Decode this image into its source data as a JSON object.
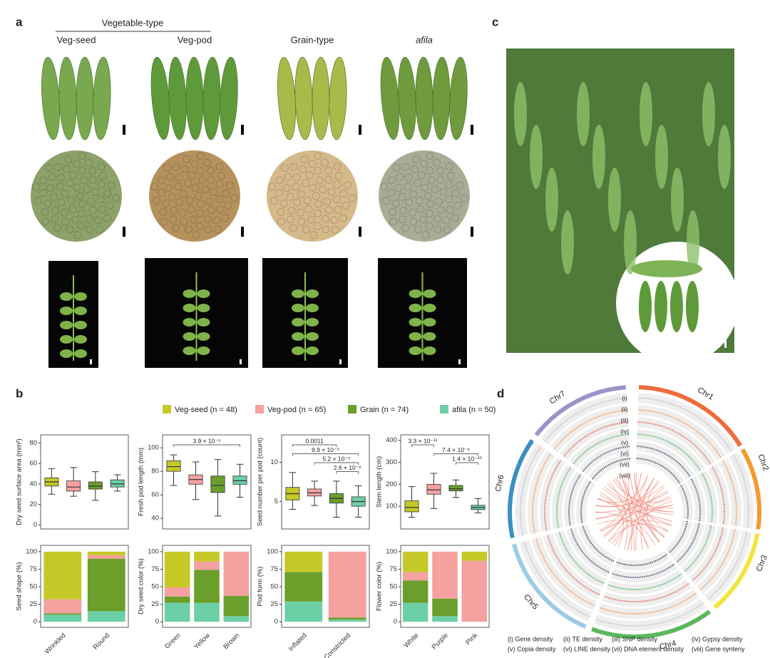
{
  "panel_labels": [
    "a",
    "b",
    "c",
    "d"
  ],
  "panel_a": {
    "group_label": "Vegetable-type",
    "columns": [
      "Veg-seed",
      "Veg-pod",
      "Grain-type",
      "afila"
    ]
  },
  "legend": [
    {
      "name": "Veg-seed (n = 48)",
      "color": "#c5c927"
    },
    {
      "name": "Veg-pod (n = 65)",
      "color": "#f4a1a0"
    },
    {
      "name": "Grain (n = 74)",
      "color": "#6b9f2b"
    },
    {
      "name": "afila (n = 50)",
      "color": "#6dcfa6"
    }
  ],
  "chart_data": [
    {
      "type": "box",
      "ylabel": "Dry seed surface area (mm²)",
      "ylim": [
        -4,
        88
      ],
      "yticks": [
        0,
        20,
        40,
        60,
        80
      ],
      "boxes": [
        [
          30,
          38,
          42,
          46,
          55
        ],
        [
          28,
          33,
          37,
          43,
          56
        ],
        [
          24,
          35,
          38,
          42,
          52
        ],
        [
          33,
          37,
          40,
          44,
          49
        ]
      ],
      "annotations": []
    },
    {
      "type": "box",
      "ylabel": "Fresh pod length (mm)",
      "ylim": [
        31,
        111
      ],
      "yticks": [
        40,
        60,
        80,
        100
      ],
      "boxes": [
        [
          68,
          80,
          84,
          89,
          94
        ],
        [
          56,
          69,
          73,
          77,
          88
        ],
        [
          42,
          62,
          68,
          76,
          90
        ],
        [
          58,
          69,
          72,
          76,
          86
        ]
      ],
      "annotations": [
        "3.9 × 10⁻⁹"
      ]
    },
    {
      "type": "box",
      "ylabel": "Seed number per pod (count)",
      "ylim": [
        1.5,
        13.5
      ],
      "yticks": [
        5,
        10
      ],
      "boxes": [
        [
          4,
          5.2,
          6,
          6.8,
          8.7
        ],
        [
          4.5,
          5.7,
          6.1,
          6.6,
          7.6
        ],
        [
          3,
          4.8,
          5.4,
          6,
          7.6
        ],
        [
          3,
          4.4,
          5,
          5.6,
          7
        ]
      ],
      "annotations": [
        "0.0011",
        "9.9 × 10⁻⁵",
        "5.2 × 10⁻⁵",
        "2.6 × 10⁻⁶"
      ]
    },
    {
      "type": "box",
      "ylabel": "Stem length (cm)",
      "ylim": [
        -3,
        425
      ],
      "yticks": [
        100,
        200,
        300,
        400
      ],
      "boxes": [
        [
          50,
          75,
          95,
          125,
          190
        ],
        [
          90,
          155,
          175,
          200,
          250
        ],
        [
          140,
          170,
          180,
          195,
          220
        ],
        [
          70,
          85,
          95,
          105,
          135
        ]
      ],
      "annotations": [
        "3.3 × 10⁻¹¹",
        "7.4 × 10⁻⁸",
        "1.4 × 10⁻¹⁰"
      ]
    },
    {
      "type": "stacked_bar",
      "ylabel": "Seed shape (%)",
      "ylim": [
        -8,
        109
      ],
      "yticks": [
        0,
        25,
        50,
        75,
        100
      ],
      "categories": [
        "Wrinkled",
        "Round"
      ],
      "series": [
        {
          "color": "#6dcfa6",
          "values": [
            10,
            15
          ]
        },
        {
          "color": "#6b9f2b",
          "values": [
            2,
            75
          ]
        },
        {
          "color": "#f4a1a0",
          "values": [
            20,
            5
          ]
        },
        {
          "color": "#c5c927",
          "values": [
            68,
            5
          ]
        }
      ]
    },
    {
      "type": "stacked_bar",
      "ylabel": "Dry seed color (%)",
      "ylim": [
        -8,
        109
      ],
      "yticks": [
        0,
        25,
        50,
        75,
        100
      ],
      "categories": [
        "Green",
        "Yellow",
        "Brown"
      ],
      "series": [
        {
          "color": "#6dcfa6",
          "values": [
            27,
            27,
            8
          ]
        },
        {
          "color": "#6b9f2b",
          "values": [
            9,
            47,
            29
          ]
        },
        {
          "color": "#f4a1a0",
          "values": [
            13,
            12,
            63
          ]
        },
        {
          "color": "#c5c927",
          "values": [
            51,
            14,
            0
          ]
        }
      ]
    },
    {
      "type": "stacked_bar",
      "ylabel": "Pod form (%)",
      "ylim": [
        -8,
        109
      ],
      "yticks": [
        0,
        25,
        50,
        75,
        100
      ],
      "categories": [
        "Inflated",
        "Constricted"
      ],
      "series": [
        {
          "color": "#6dcfa6",
          "values": [
            29,
            3
          ]
        },
        {
          "color": "#6b9f2b",
          "values": [
            42,
            3
          ]
        },
        {
          "color": "#f4a1a0",
          "values": [
            0,
            94
          ]
        },
        {
          "color": "#c5c927",
          "values": [
            29,
            0
          ]
        }
      ]
    },
    {
      "type": "stacked_bar",
      "ylabel": "Flower color (%)",
      "ylim": [
        -8,
        109
      ],
      "yticks": [
        0,
        25,
        50,
        75,
        100
      ],
      "categories": [
        "White",
        "Purple",
        "Pink"
      ],
      "series": [
        {
          "color": "#6dcfa6",
          "values": [
            27,
            8,
            0
          ]
        },
        {
          "color": "#6b9f2b",
          "values": [
            32,
            25,
            0
          ]
        },
        {
          "color": "#f4a1a0",
          "values": [
            12,
            67,
            87
          ]
        },
        {
          "color": "#c5c927",
          "values": [
            29,
            0,
            13
          ]
        }
      ]
    }
  ],
  "panel_d": {
    "chromosomes": [
      "Chr1",
      "Chr2",
      "Chr3",
      "Chr4",
      "Chr5",
      "Chr6",
      "Chr7"
    ],
    "rings": [
      "(i)",
      "(ii)",
      "(iii)",
      "(iv)",
      "(v)",
      "(vi)",
      "(vii)",
      "(viii)"
    ],
    "caption": [
      "(i) Gene density",
      "(ii) TE density",
      "(iii) SNP density",
      "(iv) Gypsy density",
      "(v) Copia density",
      "(vi) LINE density",
      "(vii) DNA element density",
      "(viii) Gene synteny"
    ]
  }
}
